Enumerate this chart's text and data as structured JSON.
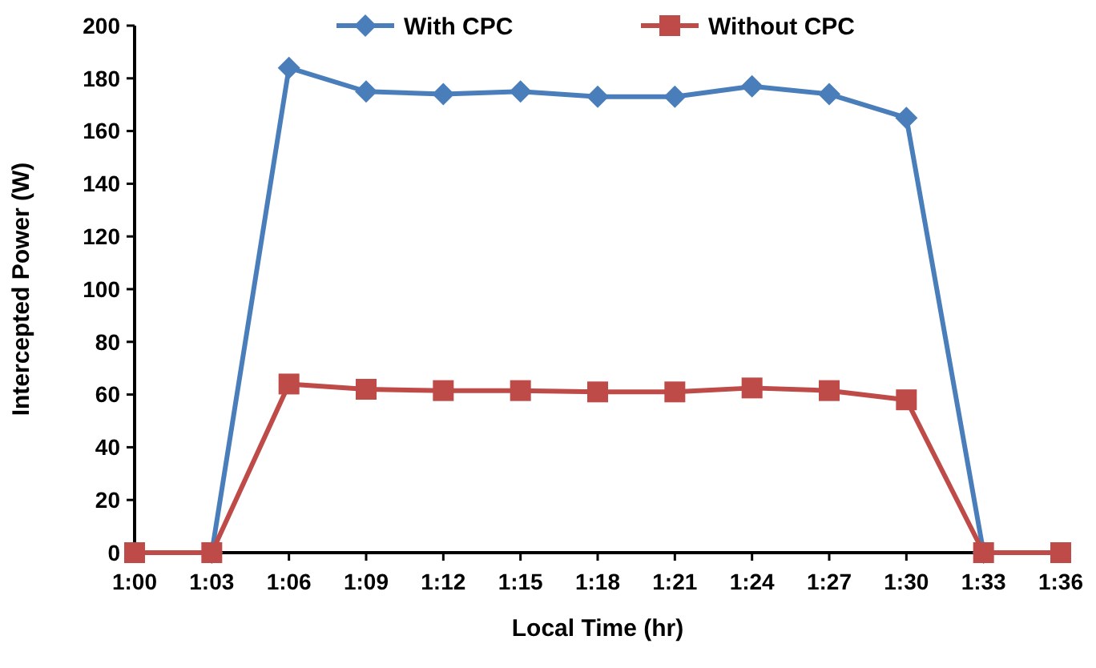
{
  "chart_data": {
    "type": "line",
    "xlabel": "Local Time (hr)",
    "ylabel": "Intercepted Power (W)",
    "categories": [
      "1:00",
      "1:03",
      "1:06",
      "1:09",
      "1:12",
      "1:15",
      "1:18",
      "1:21",
      "1:24",
      "1:27",
      "1:30",
      "1:33",
      "1:36"
    ],
    "series": [
      {
        "name": "With CPC",
        "color": "#4a7ebb",
        "marker": "diamond",
        "values": [
          null,
          0,
          184,
          175,
          174,
          175,
          173,
          173,
          177,
          174,
          165,
          0,
          null
        ]
      },
      {
        "name": "Without CPC",
        "color": "#be4b48",
        "marker": "square",
        "values": [
          0,
          0,
          64,
          62,
          61.5,
          61.5,
          61,
          61,
          62.5,
          61.5,
          58,
          0,
          0
        ]
      }
    ],
    "ylim": [
      0,
      200
    ],
    "yticks": [
      0,
      20,
      40,
      60,
      80,
      100,
      120,
      140,
      160,
      180,
      200
    ],
    "grid": false,
    "legend": "top"
  }
}
